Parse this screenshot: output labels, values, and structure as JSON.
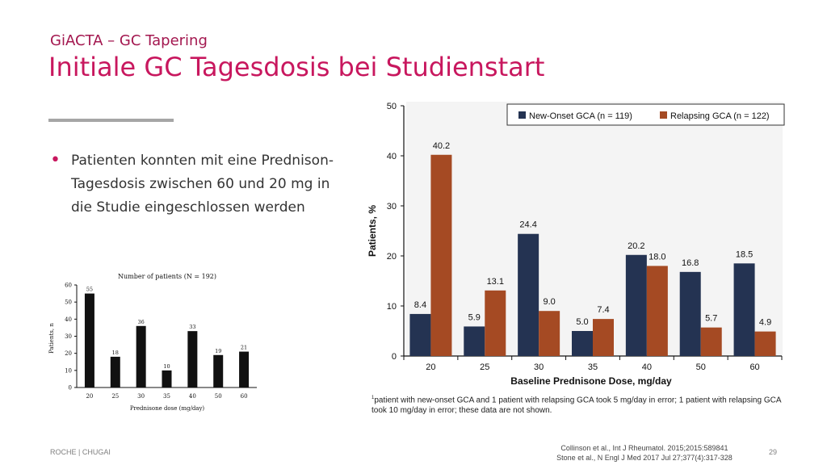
{
  "slide": {
    "supertitle": "GiACTA – GC Tapering",
    "title": "Initiale GC Tagesdosis bei Studienstart",
    "bullet": "Patienten konnten mit eine Prednison-Tagesdosis zwischen 60 und 20 mg in die Studie eingeschlossen werden",
    "footer_left": "ROCHE | CHUGAI",
    "page_number": "29",
    "references": [
      "Collinson et al., Int J Rheumatol. 2015;2015:589841",
      "Stone et al., N Engl J Med 2017 Jul 27;377(4):317-328"
    ],
    "footnote_marker": "1",
    "footnote": "patient with new-onset GCA and 1 patient with relapsing GCA took 5 mg/day in error; 1 patient with relapsing GCA took 10 mg/day in error; these data are not shown."
  },
  "colors": {
    "title": "#c8175e",
    "left_bars": "#111111",
    "new_onset": "#243352",
    "relapsing": "#a54a23"
  },
  "chart_data": [
    {
      "type": "bar",
      "title": "Number of patients (N = 192)",
      "xlabel": "Prednisone dose (mg/day)",
      "ylabel": "Patients, n",
      "categories": [
        "20",
        "25",
        "30",
        "35",
        "40",
        "50",
        "60"
      ],
      "values": [
        55,
        18,
        36,
        10,
        33,
        19,
        21
      ],
      "ylim": [
        0,
        60
      ],
      "yticks": [
        "0",
        "10",
        "20",
        "30",
        "40",
        "50",
        "60"
      ],
      "grid": false
    },
    {
      "type": "bar",
      "xlabel": "Baseline Prednisone Dose, mg/day",
      "ylabel": "Patients, %",
      "categories": [
        "20",
        "25",
        "30",
        "35",
        "40",
        "50",
        "60"
      ],
      "series": [
        {
          "name": "New-Onset GCA (n = 119)",
          "values": [
            8.4,
            5.9,
            24.4,
            5.0,
            20.2,
            16.8,
            18.5
          ],
          "labels": [
            "8.4",
            "5.9",
            "24.4",
            "5.0",
            "20.2",
            "16.8",
            "18.5"
          ]
        },
        {
          "name": "Relapsing GCA (n = 122)",
          "values": [
            40.2,
            13.1,
            9.0,
            7.4,
            18.0,
            5.7,
            4.9
          ],
          "labels": [
            "40.2",
            "13.1",
            "9.0",
            "7.4",
            "18.0",
            "5.7",
            "4.9"
          ]
        }
      ],
      "ylim": [
        0,
        50
      ],
      "yticks": [
        "0",
        "10",
        "20",
        "30",
        "40",
        "50"
      ],
      "legend_position": "top",
      "grid": false
    }
  ]
}
